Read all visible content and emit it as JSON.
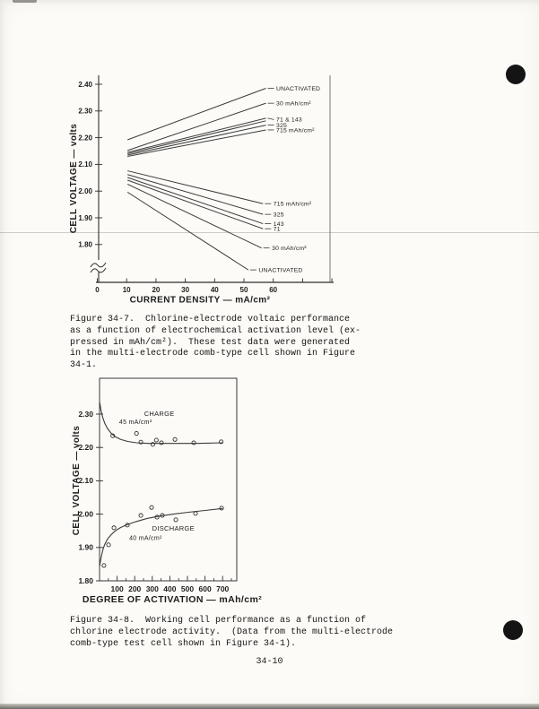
{
  "page": {
    "number": "34-10"
  },
  "figures": [
    {
      "caption": "Figure 34-7.  Chlorine-electrode voltaic performance\nas a function of electrochemical activation level (ex-\npressed in mAh/cm²).  These test data were generated\nin the multi-electrode comb-type cell shown in Figure\n34-1."
    },
    {
      "caption": "Figure 34-8.  Working cell performance as a function of\nchlorine electrode activity.  (Data from the multi-electrode\ncomb-type test cell shown in Figure 34-1)."
    }
  ],
  "chart_data": [
    {
      "type": "line",
      "title": "",
      "xlabel": "CURRENT DENSITY — mA/cm²",
      "ylabel": "CELL VOLTAGE — volts",
      "xlim": [
        0,
        80
      ],
      "ylim": [
        1.66,
        2.44
      ],
      "x_ticks_labeled": [
        0,
        10,
        20,
        30,
        40,
        50,
        60
      ],
      "x_ticks_unlabeled": [
        70,
        80
      ],
      "y_ticks": [
        "2.40",
        "2.30",
        "2.20",
        "2.10",
        "2.00",
        "1.90",
        "1.80"
      ],
      "y_axis_break": true,
      "grid": false,
      "series": [
        {
          "name": "charge-unactivated",
          "label": "UNACTIVATED",
          "points": [
            [
              10.3,
              2.192
            ],
            [
              57.5,
              2.385
            ]
          ]
        },
        {
          "name": "charge-30",
          "label": "30 mAh/cm²",
          "points": [
            [
              10.3,
              2.152
            ],
            [
              57.5,
              2.329
            ]
          ]
        },
        {
          "name": "charge-71",
          "label": "71 & 143",
          "label_dy": 1.5,
          "points": [
            [
              10.3,
              2.145
            ],
            [
              57.5,
              2.273
            ]
          ]
        },
        {
          "name": "charge-143",
          "label": "",
          "points": [
            [
              10.3,
              2.14
            ],
            [
              57.5,
              2.263
            ]
          ]
        },
        {
          "name": "charge-325",
          "label": "325",
          "points": [
            [
              10.3,
              2.135
            ],
            [
              57.5,
              2.247
            ]
          ]
        },
        {
          "name": "charge-715",
          "label": "715 mAh/cm²",
          "points": [
            [
              10.3,
              2.13
            ],
            [
              57.5,
              2.229
            ]
          ]
        },
        {
          "name": "discharge-715",
          "label": "715 mAh/cm²",
          "points": [
            [
              10.3,
              2.076
            ],
            [
              56.5,
              1.953
            ]
          ]
        },
        {
          "name": "discharge-325",
          "label": "325",
          "points": [
            [
              10.3,
              2.062
            ],
            [
              56.5,
              1.913
            ]
          ]
        },
        {
          "name": "discharge-143",
          "label": "143",
          "points": [
            [
              10.3,
              2.051
            ],
            [
              56.5,
              1.878
            ]
          ]
        },
        {
          "name": "discharge-71",
          "label": "71",
          "points": [
            [
              10.3,
              2.041
            ],
            [
              56.5,
              1.859
            ]
          ]
        },
        {
          "name": "discharge-30",
          "label": "30 mAh/cm²",
          "points": [
            [
              10.3,
              2.026
            ],
            [
              56.0,
              1.787
            ]
          ]
        },
        {
          "name": "discharge-unactivated",
          "label": "UNACTIVATED",
          "points": [
            [
              10.3,
              1.996
            ],
            [
              51.5,
              1.705
            ]
          ]
        }
      ]
    },
    {
      "type": "scatter",
      "title": "",
      "xlabel": "DEGREE OF ACTIVATION — mAh/cm²",
      "ylabel": "CELL VOLTAGE — volts",
      "xlim": [
        0,
        780
      ],
      "ylim": [
        1.8,
        2.41
      ],
      "x_ticks": [
        100,
        200,
        300,
        400,
        500,
        600,
        700
      ],
      "y_ticks": [
        "2.30",
        "2.20",
        "2.10",
        "2.00",
        "1.90",
        "1.80"
      ],
      "grid": false,
      "frame": true,
      "series": [
        {
          "name": "charge",
          "annotations": [
            {
              "text": "CHARGE",
              "x": 340,
              "v": 2.295
            },
            {
              "text": "45 mA/cm²",
              "x": 205,
              "v": 2.27
            }
          ],
          "curve": [
            [
              1,
              2.335
            ],
            [
              8,
              2.312
            ],
            [
              18,
              2.29
            ],
            [
              30,
              2.272
            ],
            [
              45,
              2.257
            ],
            [
              65,
              2.243
            ],
            [
              90,
              2.232
            ],
            [
              120,
              2.224
            ],
            [
              160,
              2.218
            ],
            [
              210,
              2.214
            ],
            [
              280,
              2.212
            ],
            [
              400,
              2.212
            ],
            [
              550,
              2.212
            ],
            [
              700,
              2.214
            ]
          ],
          "points": [
            [
              75,
              2.235
            ],
            [
              210,
              2.242
            ],
            [
              235,
              2.216
            ],
            [
              303,
              2.209
            ],
            [
              323,
              2.222
            ],
            [
              352,
              2.214
            ],
            [
              429,
              2.224
            ],
            [
              536,
              2.214
            ],
            [
              692,
              2.217
            ]
          ]
        },
        {
          "name": "discharge",
          "annotations": [
            {
              "text": "DISCHARGE",
              "x": 420,
              "v": 1.95
            },
            {
              "text": "40 mA/cm²",
              "x": 262,
              "v": 1.922
            }
          ],
          "curve": [
            [
              1,
              1.845
            ],
            [
              6,
              1.862
            ],
            [
              12,
              1.878
            ],
            [
              20,
              1.895
            ],
            [
              30,
              1.91
            ],
            [
              45,
              1.925
            ],
            [
              65,
              1.938
            ],
            [
              90,
              1.95
            ],
            [
              120,
              1.96
            ],
            [
              160,
              1.969
            ],
            [
              210,
              1.978
            ],
            [
              270,
              1.987
            ],
            [
              340,
              1.994
            ],
            [
              420,
              2.0
            ],
            [
              510,
              2.006
            ],
            [
              600,
              2.011
            ],
            [
              700,
              2.017
            ]
          ],
          "points": [
            [
              25,
              1.846
            ],
            [
              51,
              1.908
            ],
            [
              82,
              1.959
            ],
            [
              158,
              1.967
            ],
            [
              235,
              1.996
            ],
            [
              296,
              2.02
            ],
            [
              327,
              1.991
            ],
            [
              357,
              1.996
            ],
            [
              434,
              1.983
            ],
            [
              546,
              2.002
            ],
            [
              694,
              2.018
            ]
          ]
        }
      ]
    }
  ]
}
